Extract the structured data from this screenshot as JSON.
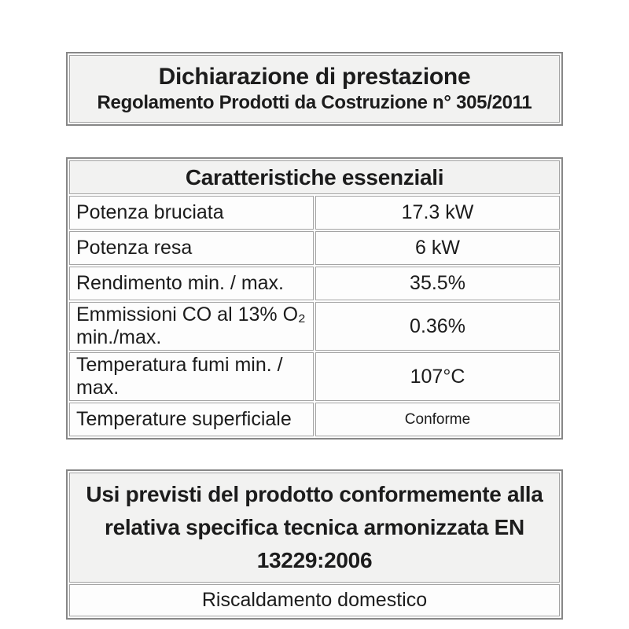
{
  "colors": {
    "page_background": "#ffffff",
    "box_fill": "#f2f2f1",
    "outer_border": "#878787",
    "cell_border": "#a3a3a3",
    "text": "#1c1c1c"
  },
  "header_box": {
    "title": "Dichiarazione di prestazione",
    "subtitle": "Regolamento Prodotti da Costruzione n° 305/2011"
  },
  "spec_table": {
    "title": "Caratteristiche essenziali",
    "rows": [
      {
        "label": "Potenza bruciata",
        "value": "17.3 kW"
      },
      {
        "label": "Potenza resa",
        "value": "6 kW"
      },
      {
        "label": "Rendimento min. / max.",
        "value": "35.5%"
      },
      {
        "label": "Emmissioni CO al 13% O₂ min./max.",
        "value": "0.36%"
      },
      {
        "label": "Temperatura fumi min. / max.",
        "value": "107°C"
      },
      {
        "label": "Temperature superficiale",
        "value": "Conforme"
      }
    ]
  },
  "usage_box": {
    "title": "Usi previsti del prodotto conformemente alla relativa specifica tecnica armonizzata EN 13229:2006",
    "value": "Riscaldamento domestico"
  }
}
